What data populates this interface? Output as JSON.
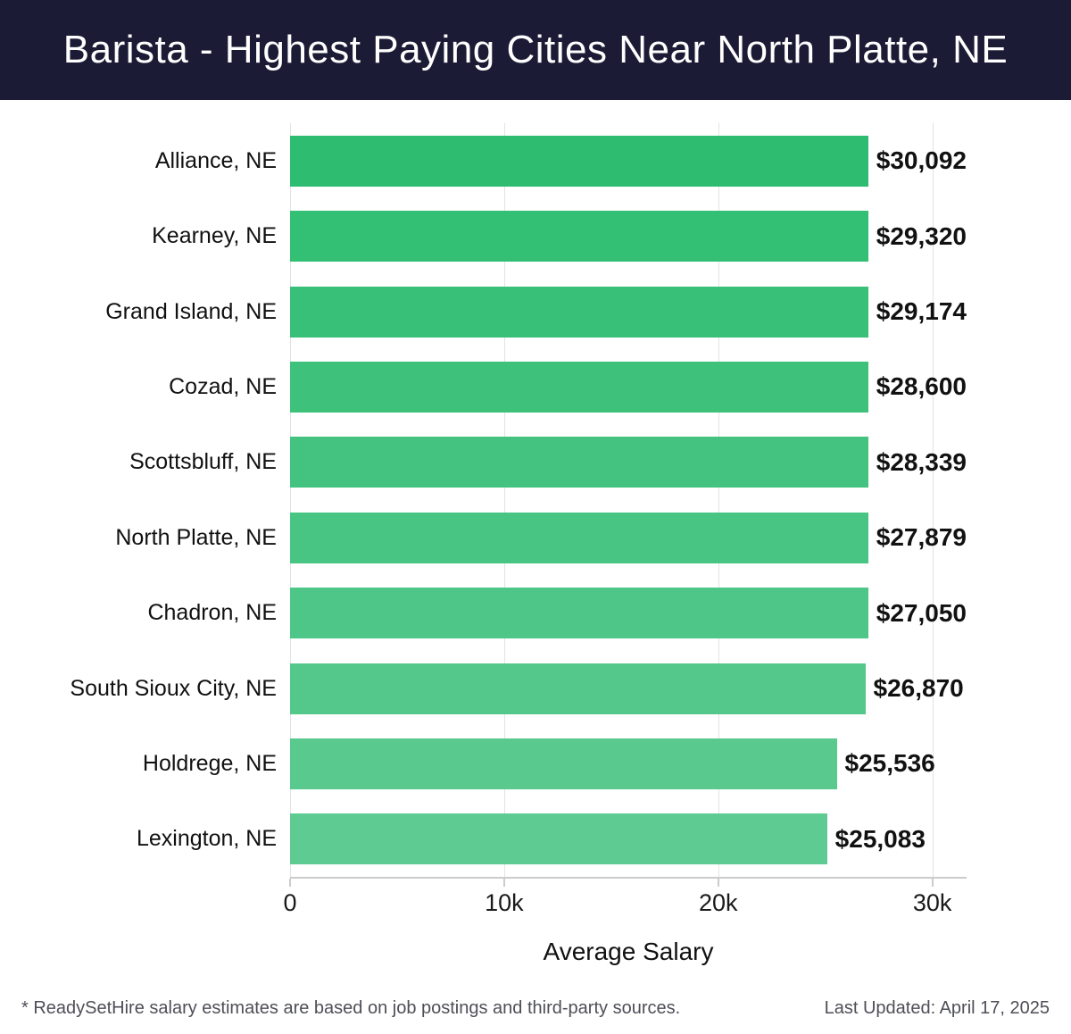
{
  "header": {
    "title": "Barista - Highest Paying Cities Near North Platte, NE",
    "background_color": "#1b1b36",
    "text_color": "#ffffff"
  },
  "chart_data": {
    "type": "bar",
    "orientation": "horizontal",
    "title": "Barista - Highest Paying Cities Near North Platte, NE",
    "categories": [
      "Alliance, NE",
      "Kearney, NE",
      "Grand Island, NE",
      "Cozad, NE",
      "Scottsbluff, NE",
      "North Platte, NE",
      "Chadron, NE",
      "South Sioux City, NE",
      "Holdrege, NE",
      "Lexington, NE"
    ],
    "values": [
      30092,
      29320,
      29174,
      28600,
      28339,
      27879,
      27050,
      26870,
      25536,
      25083
    ],
    "value_labels": [
      "$30,092",
      "$29,320",
      "$29,174",
      "$28,600",
      "$28,339",
      "$27,879",
      "$27,050",
      "$26,870",
      "$25,536",
      "$25,083"
    ],
    "xlabel": "Average Salary",
    "ylabel": "",
    "xlim": [
      0,
      31600
    ],
    "x_ticks": [
      {
        "value": 0,
        "label": "0"
      },
      {
        "value": 10000,
        "label": "10k"
      },
      {
        "value": 20000,
        "label": "20k"
      },
      {
        "value": 30000,
        "label": "30k"
      }
    ],
    "grid": true,
    "gridline_color": "#e3e3e3",
    "axis_color": "#cccccc",
    "bar_color_start": "#2ebd70",
    "bar_color_end": "#5ecb92",
    "legend": "none"
  },
  "footer": {
    "note": "* ReadySetHire salary estimates are based on job postings and third-party sources.",
    "last_updated": "Last Updated: April 17, 2025"
  }
}
